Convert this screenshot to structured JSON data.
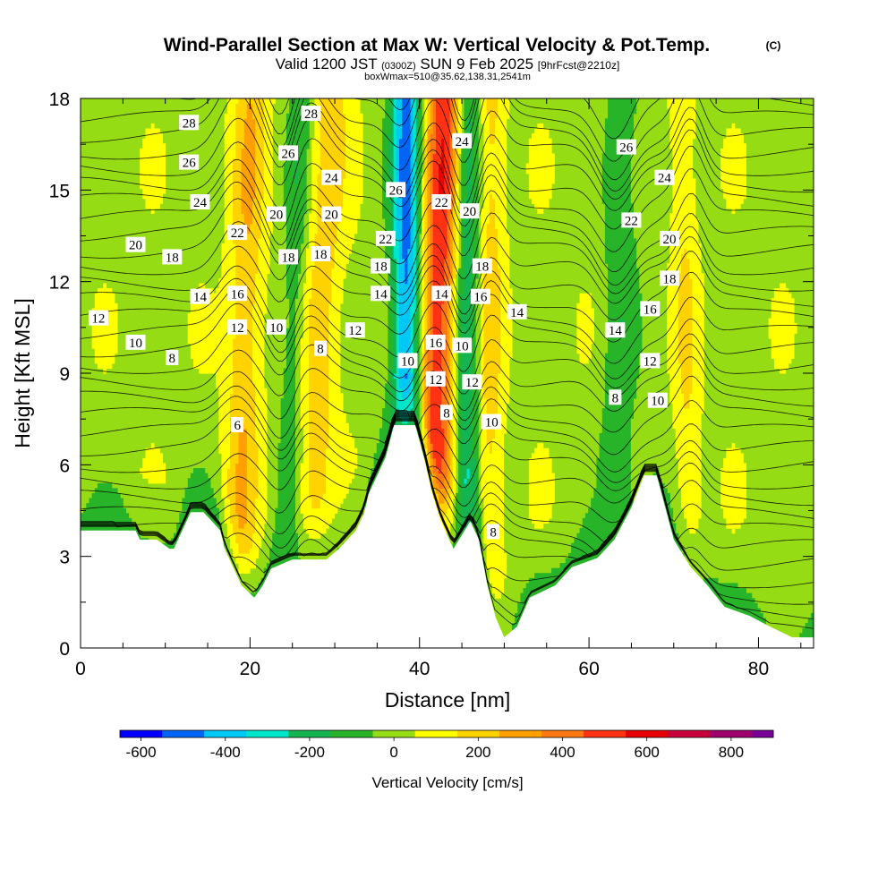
{
  "title": {
    "main": "Wind-Parallel Section at Max W: Vertical Velocity & Pot.Temp.",
    "copyright": "(C)",
    "valid_prefix": "Valid 1200 JST",
    "valid_utc": "(0300Z)",
    "valid_date": "SUN 9 Feb 2025",
    "forecast": "[9hrFcst@2210z]",
    "box_info": "boxWmax=510@35.62,138.31,2541m"
  },
  "chart_data": {
    "type": "heatmap",
    "xlabel": "Distance [nm]",
    "ylabel": "Height [Kft MSL]",
    "xlim": [
      0,
      86.5
    ],
    "ylim": [
      0,
      18
    ],
    "x_ticks": [
      "0",
      "20",
      "40",
      "60",
      "80"
    ],
    "y_ticks": [
      "0",
      "3",
      "6",
      "9",
      "12",
      "15",
      "18"
    ],
    "colorbar": {
      "label": "Vertical Velocity [cm/s]",
      "tick_labels": [
        "-600",
        "-400",
        "-200",
        "0",
        "200",
        "400",
        "600",
        "800"
      ],
      "tick_values": [
        -600,
        -400,
        -200,
        0,
        200,
        400,
        600,
        800
      ],
      "bins": [
        -650,
        -550,
        -450,
        -350,
        -250,
        -150,
        -50,
        50,
        150,
        250,
        350,
        450,
        550,
        650,
        750,
        850,
        900
      ],
      "colors": [
        "#0000ff",
        "#0064f5",
        "#00c8f5",
        "#00e6c8",
        "#14b450",
        "#28b428",
        "#96dc14",
        "#ffff00",
        "#ffd200",
        "#ffa000",
        "#ff7814",
        "#ff3214",
        "#e60000",
        "#c8003c",
        "#a0006e",
        "#780096"
      ]
    },
    "terrain_kft": [
      [
        0,
        3.85
      ],
      [
        6.5,
        3.85
      ],
      [
        7,
        3.55
      ],
      [
        9,
        3.55
      ],
      [
        10.5,
        3.25
      ],
      [
        11,
        3.25
      ],
      [
        12,
        3.85
      ],
      [
        13,
        4.45
      ],
      [
        14.5,
        4.45
      ],
      [
        15.5,
        4.15
      ],
      [
        16.5,
        3.85
      ],
      [
        17,
        3.25
      ],
      [
        18,
        2.65
      ],
      [
        19,
        2.05
      ],
      [
        20.5,
        1.65
      ],
      [
        21.5,
        2.05
      ],
      [
        22.5,
        2.6
      ],
      [
        25,
        2.9
      ],
      [
        29,
        2.9
      ],
      [
        30.5,
        3.25
      ],
      [
        31.5,
        3.55
      ],
      [
        32.5,
        3.85
      ],
      [
        33.5,
        4.45
      ],
      [
        34,
        5.05
      ],
      [
        35,
        5.65
      ],
      [
        36,
        6.25
      ],
      [
        37,
        7.3
      ],
      [
        39.5,
        7.3
      ],
      [
        40.5,
        6.25
      ],
      [
        41.5,
        5.05
      ],
      [
        42.5,
        4.15
      ],
      [
        44,
        3.25
      ],
      [
        46,
        4.15
      ],
      [
        47,
        3.55
      ],
      [
        48,
        2.05
      ],
      [
        49,
        1.0
      ],
      [
        50,
        0.35
      ],
      [
        51.5,
        0.7
      ],
      [
        53,
        1.65
      ],
      [
        56,
        2.05
      ],
      [
        58,
        2.65
      ],
      [
        61,
        2.95
      ],
      [
        63,
        3.55
      ],
      [
        65,
        4.6
      ],
      [
        66.5,
        5.65
      ],
      [
        68,
        5.65
      ],
      [
        69,
        4.6
      ],
      [
        70,
        3.55
      ],
      [
        72,
        2.65
      ],
      [
        74,
        2.05
      ],
      [
        76,
        1.35
      ],
      [
        79,
        1.05
      ],
      [
        81,
        0.75
      ],
      [
        84,
        0.35
      ],
      [
        86.5,
        0.35
      ]
    ],
    "updraft_bands": [
      {
        "x_bottom": 18.5,
        "x_top": 20.0,
        "width": 2.0,
        "w": 220
      },
      {
        "x_bottom": 26.5,
        "x_top": 29.5,
        "width": 2.4,
        "w": 180
      },
      {
        "x_bottom": 41.0,
        "x_top": 43.0,
        "width": 2.3,
        "w": 510
      },
      {
        "x_bottom": 48.0,
        "x_top": 48.5,
        "width": 1.6,
        "w": 180
      },
      {
        "x_bottom": 72.0,
        "x_top": 71.0,
        "width": 1.5,
        "w": 130
      }
    ],
    "downdraft_bands": [
      {
        "x_bottom": 24.0,
        "x_top": 26.0,
        "width": 1.5,
        "w": -150
      },
      {
        "x_bottom": 38.5,
        "x_top": 38.5,
        "width": 1.8,
        "w": -520
      },
      {
        "x_bottom": 45.5,
        "x_top": 45.5,
        "width": 1.6,
        "w": -300
      },
      {
        "x_bottom": 63.0,
        "x_top": 64.0,
        "width": 2.0,
        "w": -150
      }
    ],
    "contour_labels": [
      {
        "text": "28",
        "x": 12.8,
        "y": 17.2
      },
      {
        "text": "26",
        "x": 12.8,
        "y": 15.9
      },
      {
        "text": "24",
        "x": 14.1,
        "y": 14.6
      },
      {
        "text": "20",
        "x": 6.5,
        "y": 13.2
      },
      {
        "text": "18",
        "x": 10.8,
        "y": 12.8
      },
      {
        "text": "14",
        "x": 14.1,
        "y": 11.5
      },
      {
        "text": "12",
        "x": 2.1,
        "y": 10.8
      },
      {
        "text": "10",
        "x": 6.5,
        "y": 10.0
      },
      {
        "text": "8",
        "x": 10.8,
        "y": 9.5
      },
      {
        "text": "6",
        "x": 18.5,
        "y": 7.3
      },
      {
        "text": "22",
        "x": 18.5,
        "y": 13.6
      },
      {
        "text": "16",
        "x": 18.5,
        "y": 11.6
      },
      {
        "text": "12",
        "x": 18.5,
        "y": 10.5
      },
      {
        "text": "28",
        "x": 27.2,
        "y": 17.5
      },
      {
        "text": "26",
        "x": 24.5,
        "y": 16.2
      },
      {
        "text": "24",
        "x": 29.6,
        "y": 15.4
      },
      {
        "text": "20",
        "x": 23.1,
        "y": 14.2
      },
      {
        "text": "20",
        "x": 29.6,
        "y": 14.2
      },
      {
        "text": "18",
        "x": 24.5,
        "y": 12.8
      },
      {
        "text": "18",
        "x": 28.3,
        "y": 12.9
      },
      {
        "text": "10",
        "x": 23.1,
        "y": 10.5
      },
      {
        "text": "8",
        "x": 28.3,
        "y": 9.8
      },
      {
        "text": "12",
        "x": 32.4,
        "y": 10.4
      },
      {
        "text": "26",
        "x": 37.2,
        "y": 15.0
      },
      {
        "text": "22",
        "x": 36.0,
        "y": 13.4
      },
      {
        "text": "18",
        "x": 35.4,
        "y": 12.5
      },
      {
        "text": "14",
        "x": 35.4,
        "y": 11.6
      },
      {
        "text": "10",
        "x": 38.6,
        "y": 9.4
      },
      {
        "text": "24",
        "x": 45.0,
        "y": 16.6
      },
      {
        "text": "22",
        "x": 42.6,
        "y": 14.6
      },
      {
        "text": "20",
        "x": 45.9,
        "y": 14.3
      },
      {
        "text": "18",
        "x": 47.4,
        "y": 12.5
      },
      {
        "text": "14",
        "x": 42.6,
        "y": 11.6
      },
      {
        "text": "16",
        "x": 47.2,
        "y": 11.5
      },
      {
        "text": "14",
        "x": 51.5,
        "y": 11.0
      },
      {
        "text": "16",
        "x": 41.9,
        "y": 10.0
      },
      {
        "text": "10",
        "x": 45.0,
        "y": 9.9
      },
      {
        "text": "12",
        "x": 41.9,
        "y": 8.8
      },
      {
        "text": "12",
        "x": 46.2,
        "y": 8.7
      },
      {
        "text": "8",
        "x": 43.2,
        "y": 7.7
      },
      {
        "text": "10",
        "x": 48.5,
        "y": 7.4
      },
      {
        "text": "8",
        "x": 48.7,
        "y": 3.8
      },
      {
        "text": "26",
        "x": 64.4,
        "y": 16.4
      },
      {
        "text": "24",
        "x": 68.9,
        "y": 15.4
      },
      {
        "text": "22",
        "x": 65.0,
        "y": 14.0
      },
      {
        "text": "20",
        "x": 69.5,
        "y": 13.4
      },
      {
        "text": "18",
        "x": 69.5,
        "y": 12.1
      },
      {
        "text": "16",
        "x": 67.2,
        "y": 11.1
      },
      {
        "text": "14",
        "x": 63.1,
        "y": 10.4
      },
      {
        "text": "12",
        "x": 67.2,
        "y": 9.4
      },
      {
        "text": "10",
        "x": 68.1,
        "y": 8.1
      },
      {
        "text": "8",
        "x": 63.1,
        "y": 8.2
      }
    ]
  }
}
